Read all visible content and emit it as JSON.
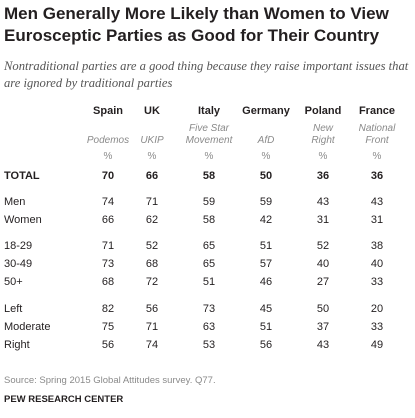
{
  "title": "Men Generally More Likely than Women to View Euroscepti​c Parties as Good for Their Country",
  "subtitle": "Nontraditional parties are a good thing because they raise important issues that are ignored by traditional parties",
  "source": "Source: Spring 2015 Global Attitudes survey. Q77.",
  "credit": "PEW RESEARCH CENTER",
  "chart_data": {
    "type": "table",
    "title": "Men Generally More Likely than Women to View Euroscepti​c Parties as Good for Their Country",
    "columns": [
      {
        "country": "Spain",
        "party": [
          "Podemos"
        ],
        "unit": "%"
      },
      {
        "country": "UK",
        "party": [
          "UKIP"
        ],
        "unit": "%"
      },
      {
        "country": "Italy",
        "party": [
          "Five Star",
          "Movement"
        ],
        "unit": "%"
      },
      {
        "country": "Germany",
        "party": [
          "AfD"
        ],
        "unit": "%"
      },
      {
        "country": "Poland",
        "party": [
          "New",
          "Right"
        ],
        "unit": "%"
      },
      {
        "country": "France",
        "party": [
          "National",
          "Front"
        ],
        "unit": "%"
      }
    ],
    "rows": [
      {
        "label": "TOTAL",
        "values": [
          70,
          66,
          58,
          50,
          36,
          36
        ],
        "bold": true
      },
      {
        "label": "Men",
        "values": [
          74,
          71,
          59,
          59,
          43,
          43
        ]
      },
      {
        "label": "Women",
        "values": [
          66,
          62,
          58,
          42,
          31,
          31
        ]
      },
      {
        "label": "18-29",
        "values": [
          71,
          52,
          65,
          51,
          52,
          38
        ]
      },
      {
        "label": "30-49",
        "values": [
          73,
          68,
          65,
          57,
          40,
          40
        ]
      },
      {
        "label": "50+",
        "values": [
          68,
          72,
          51,
          46,
          27,
          33
        ]
      },
      {
        "label": "Left",
        "values": [
          82,
          56,
          73,
          45,
          50,
          20
        ]
      },
      {
        "label": "Moderate",
        "values": [
          75,
          71,
          63,
          51,
          37,
          33
        ]
      },
      {
        "label": "Right",
        "values": [
          56,
          74,
          53,
          56,
          43,
          49
        ]
      }
    ]
  }
}
